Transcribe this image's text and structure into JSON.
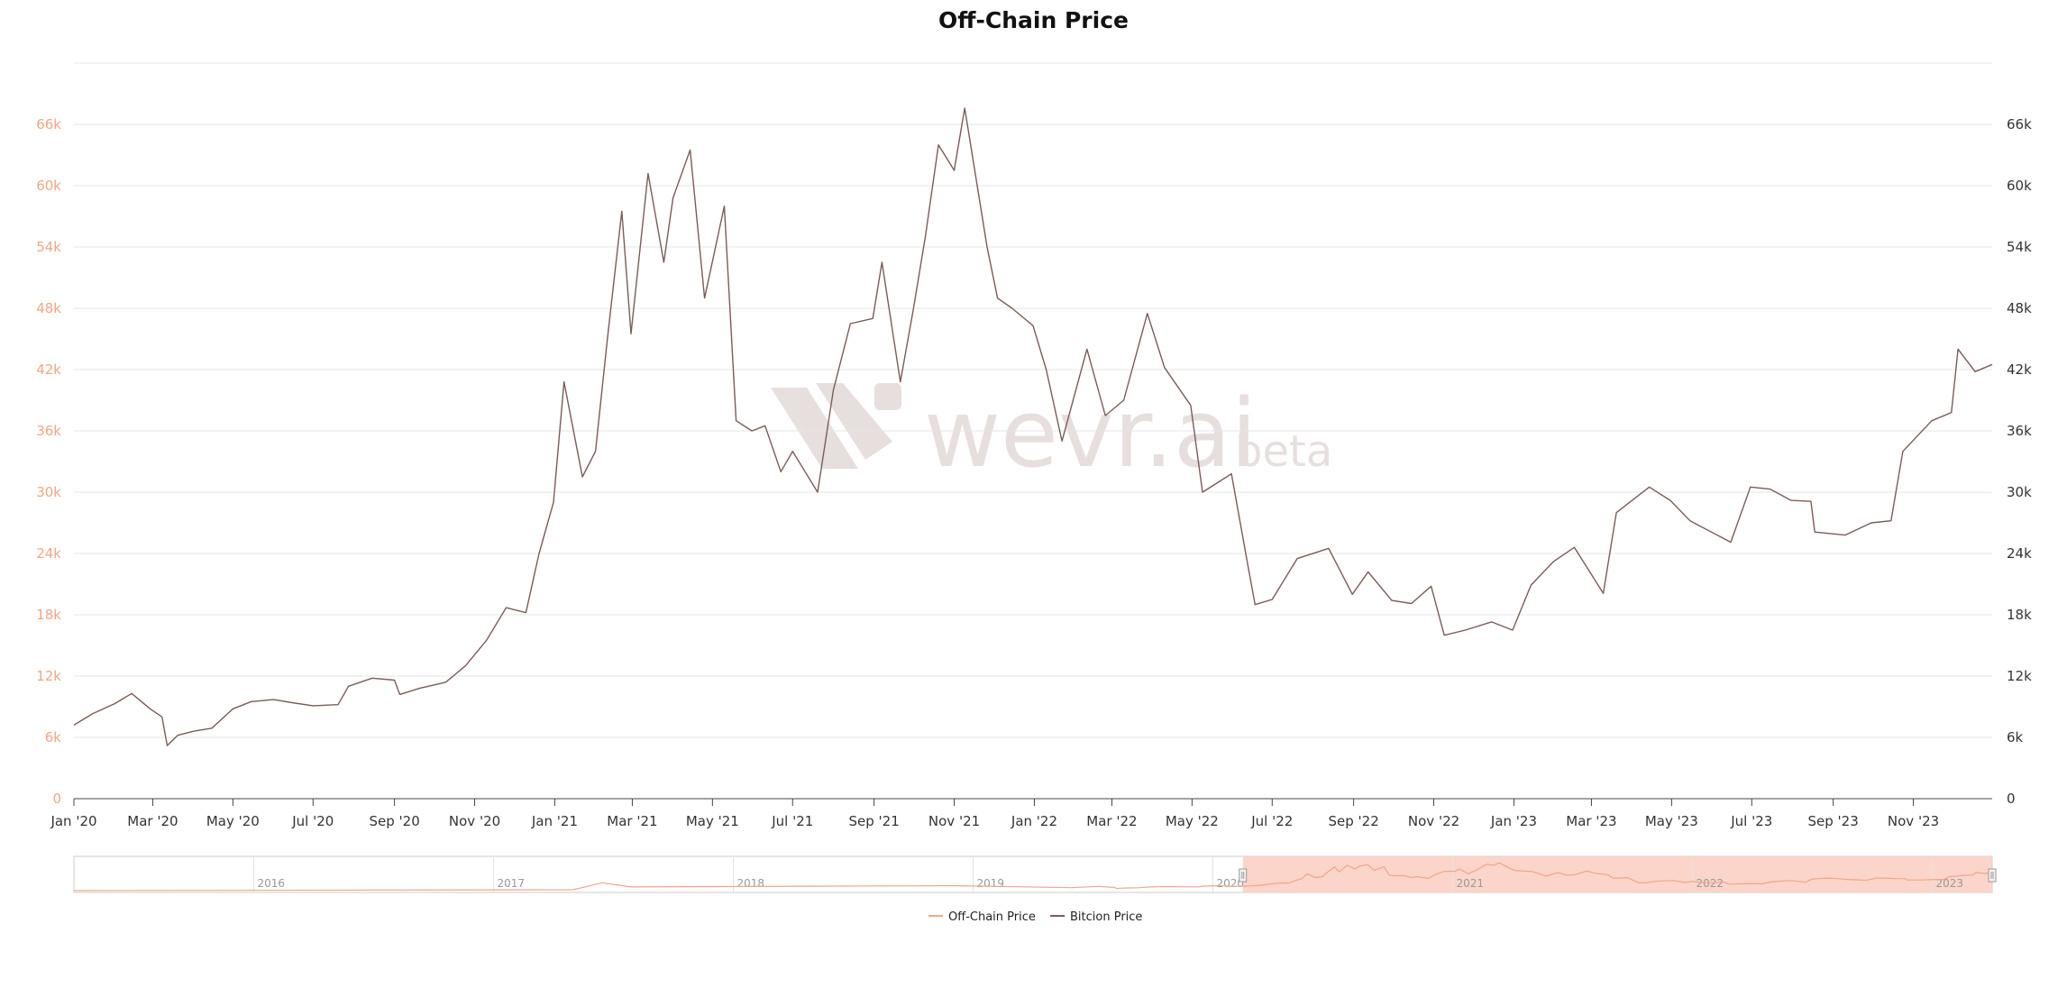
{
  "chart_data": {
    "type": "line",
    "title": "Off-Chain Price",
    "xlabel": "",
    "ylabel_left": "",
    "ylabel_right": "",
    "x_start": "2020-01-01",
    "x_end": "2023-12-31",
    "x_ticks": [
      "Jan '20",
      "Mar '20",
      "May '20",
      "Jul '20",
      "Sep '20",
      "Nov '20",
      "Jan '21",
      "Mar '21",
      "May '21",
      "Jul '21",
      "Sep '21",
      "Nov '21",
      "Jan '22",
      "Mar '22",
      "May '22",
      "Jul '22",
      "Sep '22",
      "Nov '22",
      "Jan '23",
      "Mar '23",
      "May '23",
      "Jul '23",
      "Sep '23",
      "Nov '23"
    ],
    "y_left": {
      "ticks": [
        "0",
        "6k",
        "12k",
        "18k",
        "24k",
        "30k",
        "36k",
        "42k",
        "48k",
        "54k",
        "60k",
        "66k"
      ],
      "ylim": [
        0,
        72000
      ],
      "color": "#f4a582"
    },
    "y_right": {
      "ticks": [
        "0",
        "6k",
        "12k",
        "18k",
        "24k",
        "30k",
        "36k",
        "42k",
        "48k",
        "54k",
        "60k",
        "66k"
      ],
      "ylim": [
        0,
        72000
      ]
    },
    "grid": true,
    "legend_position": "bottom-center",
    "series": [
      {
        "name": "Off-Chain Price",
        "color": "#f4a582",
        "axis": "left",
        "points": []
      },
      {
        "name": "Bitcion Price",
        "color": "#7a5c58",
        "axis": "right",
        "points": [
          [
            "2020-01-01",
            7200
          ],
          [
            "2020-01-15",
            8300
          ],
          [
            "2020-02-01",
            9300
          ],
          [
            "2020-02-14",
            10300
          ],
          [
            "2020-02-28",
            8800
          ],
          [
            "2020-03-08",
            8000
          ],
          [
            "2020-03-12",
            5200
          ],
          [
            "2020-03-20",
            6200
          ],
          [
            "2020-04-01",
            6600
          ],
          [
            "2020-04-15",
            6900
          ],
          [
            "2020-05-01",
            8800
          ],
          [
            "2020-05-15",
            9500
          ],
          [
            "2020-06-01",
            9700
          ],
          [
            "2020-06-15",
            9400
          ],
          [
            "2020-07-01",
            9100
          ],
          [
            "2020-07-20",
            9200
          ],
          [
            "2020-07-28",
            11000
          ],
          [
            "2020-08-15",
            11800
          ],
          [
            "2020-09-01",
            11600
          ],
          [
            "2020-09-05",
            10200
          ],
          [
            "2020-09-20",
            10800
          ],
          [
            "2020-10-10",
            11400
          ],
          [
            "2020-10-25",
            13000
          ],
          [
            "2020-11-10",
            15500
          ],
          [
            "2020-11-25",
            18700
          ],
          [
            "2020-12-10",
            18200
          ],
          [
            "2020-12-20",
            24000
          ],
          [
            "2020-12-31",
            29000
          ],
          [
            "2021-01-08",
            40800
          ],
          [
            "2021-01-22",
            31500
          ],
          [
            "2021-02-01",
            34000
          ],
          [
            "2021-02-10",
            45000
          ],
          [
            "2021-02-21",
            57500
          ],
          [
            "2021-02-28",
            45500
          ],
          [
            "2021-03-13",
            61200
          ],
          [
            "2021-03-25",
            52500
          ],
          [
            "2021-04-01",
            58800
          ],
          [
            "2021-04-14",
            63500
          ],
          [
            "2021-04-25",
            49000
          ],
          [
            "2021-05-10",
            58000
          ],
          [
            "2021-05-19",
            37000
          ],
          [
            "2021-05-31",
            36000
          ],
          [
            "2021-06-10",
            36500
          ],
          [
            "2021-06-22",
            32000
          ],
          [
            "2021-07-01",
            34000
          ],
          [
            "2021-07-20",
            30000
          ],
          [
            "2021-08-01",
            40000
          ],
          [
            "2021-08-14",
            46500
          ],
          [
            "2021-08-31",
            47000
          ],
          [
            "2021-09-07",
            52500
          ],
          [
            "2021-09-21",
            40800
          ],
          [
            "2021-10-01",
            48000
          ],
          [
            "2021-10-10",
            55000
          ],
          [
            "2021-10-20",
            64000
          ],
          [
            "2021-11-01",
            61500
          ],
          [
            "2021-11-09",
            67600
          ],
          [
            "2021-11-26",
            54000
          ],
          [
            "2021-12-04",
            49000
          ],
          [
            "2021-12-15",
            48000
          ],
          [
            "2021-12-31",
            46300
          ],
          [
            "2022-01-10",
            42000
          ],
          [
            "2022-01-22",
            35000
          ],
          [
            "2022-02-10",
            44000
          ],
          [
            "2022-02-24",
            37500
          ],
          [
            "2022-03-10",
            39000
          ],
          [
            "2022-03-28",
            47500
          ],
          [
            "2022-04-10",
            42200
          ],
          [
            "2022-04-30",
            38500
          ],
          [
            "2022-05-09",
            30000
          ],
          [
            "2022-05-31",
            31800
          ],
          [
            "2022-06-13",
            22500
          ],
          [
            "2022-06-18",
            19000
          ],
          [
            "2022-07-01",
            19500
          ],
          [
            "2022-07-20",
            23500
          ],
          [
            "2022-08-13",
            24500
          ],
          [
            "2022-08-31",
            20000
          ],
          [
            "2022-09-12",
            22200
          ],
          [
            "2022-09-30",
            19400
          ],
          [
            "2022-10-15",
            19100
          ],
          [
            "2022-10-30",
            20800
          ],
          [
            "2022-11-09",
            16000
          ],
          [
            "2022-11-25",
            16500
          ],
          [
            "2022-12-15",
            17300
          ],
          [
            "2022-12-31",
            16500
          ],
          [
            "2023-01-14",
            20900
          ],
          [
            "2023-01-31",
            23200
          ],
          [
            "2023-02-16",
            24600
          ],
          [
            "2023-03-10",
            20100
          ],
          [
            "2023-03-20",
            28000
          ],
          [
            "2023-04-14",
            30500
          ],
          [
            "2023-04-30",
            29200
          ],
          [
            "2023-05-15",
            27200
          ],
          [
            "2023-06-15",
            25100
          ],
          [
            "2023-06-30",
            30500
          ],
          [
            "2023-07-15",
            30300
          ],
          [
            "2023-07-31",
            29200
          ],
          [
            "2023-08-15",
            29100
          ],
          [
            "2023-08-18",
            26100
          ],
          [
            "2023-09-10",
            25800
          ],
          [
            "2023-09-30",
            27000
          ],
          [
            "2023-10-15",
            27200
          ],
          [
            "2023-10-24",
            34000
          ],
          [
            "2023-11-15",
            37000
          ],
          [
            "2023-11-30",
            37800
          ],
          [
            "2023-12-05",
            44000
          ],
          [
            "2023-12-18",
            41800
          ],
          [
            "2023-12-31",
            42500
          ]
        ]
      }
    ]
  },
  "navigator": {
    "labels": [
      "2016",
      "2017",
      "2018",
      "2019",
      "2020",
      "2021",
      "2022",
      "2023"
    ]
  },
  "legend": {
    "items": [
      {
        "label": "Off-Chain Price",
        "color": "#f4a582"
      },
      {
        "label": "Bitcion Price",
        "color": "#7a5c58"
      }
    ]
  },
  "watermark": {
    "brand": "wevr.ai",
    "suffix": "beta"
  },
  "colors": {
    "left_axis": "#f4a582",
    "series_line": "#7a5c58",
    "grid": "#e6e6e6",
    "nav_fill": "#fbd0c3"
  }
}
